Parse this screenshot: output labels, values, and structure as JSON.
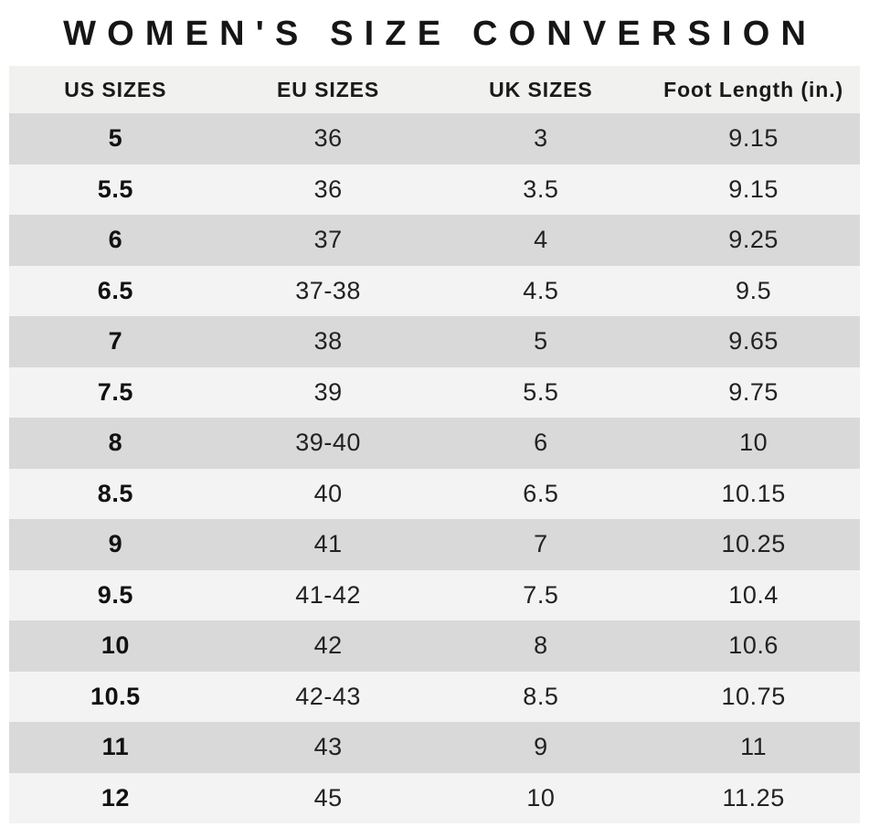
{
  "title": "WOMEN'S SIZE CONVERSION",
  "chart_data": {
    "type": "table",
    "title": "WOMEN'S SIZE CONVERSION",
    "columns": [
      "US SIZES",
      "EU SIZES",
      "UK SIZES",
      "Foot Length (in.)"
    ],
    "rows": [
      [
        "5",
        "36",
        "3",
        "9.15"
      ],
      [
        "5.5",
        "36",
        "3.5",
        "9.15"
      ],
      [
        "6",
        "37",
        "4",
        "9.25"
      ],
      [
        "6.5",
        "37-38",
        "4.5",
        "9.5"
      ],
      [
        "7",
        "38",
        "5",
        "9.65"
      ],
      [
        "7.5",
        "39",
        "5.5",
        "9.75"
      ],
      [
        "8",
        "39-40",
        "6",
        "10"
      ],
      [
        "8.5",
        "40",
        "6.5",
        "10.15"
      ],
      [
        "9",
        "41",
        "7",
        "10.25"
      ],
      [
        "9.5",
        "41-42",
        "7.5",
        "10.4"
      ],
      [
        "10",
        "42",
        "8",
        "10.6"
      ],
      [
        "10.5",
        "42-43",
        "8.5",
        "10.75"
      ],
      [
        "11",
        "43",
        "9",
        "11"
      ],
      [
        "12",
        "45",
        "10",
        "11.25"
      ]
    ]
  },
  "colors": {
    "row_dark": "#d9d9d9",
    "row_light": "#f3f3f3",
    "header_bg": "#f1f1ef",
    "text": "#1c1c1c",
    "page_bg": "#ffffff"
  }
}
